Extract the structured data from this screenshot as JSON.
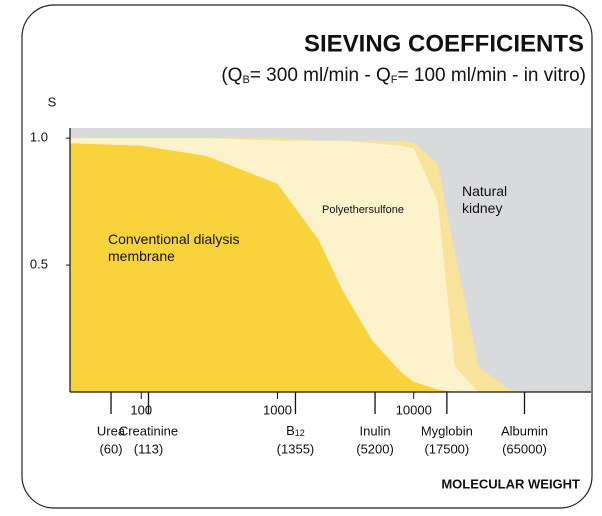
{
  "chart_data": {
    "type": "area",
    "title": "SIEVING COEFFICIENTS",
    "subtitle": [
      "(Q",
      "B",
      "= 300 ml/min - Q",
      "F",
      "= 100 ml/min - in vitro)"
    ],
    "y_label": "S",
    "x_label": "MOLECULAR WEIGHT",
    "log_x": true,
    "xlim": [
      30,
      200000
    ],
    "xticks": [
      100,
      1000,
      10000
    ],
    "ylim": [
      0,
      1.04
    ],
    "yticks": [
      0.5,
      {
        "value": 1,
        "label": "1.0"
      }
    ],
    "background_color": "#d9dadc",
    "x": [
      30,
      100,
      300,
      1000,
      2000,
      3000,
      5000,
      8000,
      10000,
      15000,
      20000,
      30000,
      50000,
      65000
    ],
    "series": [
      {
        "name": "Natural kidney",
        "color": "#f7e49a",
        "values": [
          1.0,
          1.0,
          1.0,
          1.0,
          0.99,
          0.99,
          0.99,
          0.99,
          0.98,
          0.9,
          0.55,
          0.1,
          0.01,
          0
        ]
      },
      {
        "name": "Polyethersulfone",
        "color": "#fcf3cc",
        "values": [
          1.0,
          1.0,
          1.0,
          0.99,
          0.99,
          0.99,
          0.98,
          0.97,
          0.96,
          0.75,
          0.1,
          0,
          0,
          0
        ]
      },
      {
        "name": "Conventional dialysis membrane",
        "color": "#f9d33c",
        "values": [
          0.98,
          0.97,
          0.93,
          0.82,
          0.6,
          0.4,
          0.2,
          0.08,
          0.04,
          0.01,
          0,
          0,
          0,
          0
        ]
      }
    ],
    "markers": {
      "names": [
        "Urea",
        "Creatinine",
        [
          "B",
          "12"
        ],
        "Inulin",
        "Myglobin",
        "Albumin"
      ],
      "x": [
        60,
        113,
        1355,
        5200,
        17500,
        65000
      ],
      "x_labels": [
        "(60)",
        "(113)",
        "(1355)",
        "(5200)",
        "(17500)",
        "(65000)"
      ]
    }
  }
}
